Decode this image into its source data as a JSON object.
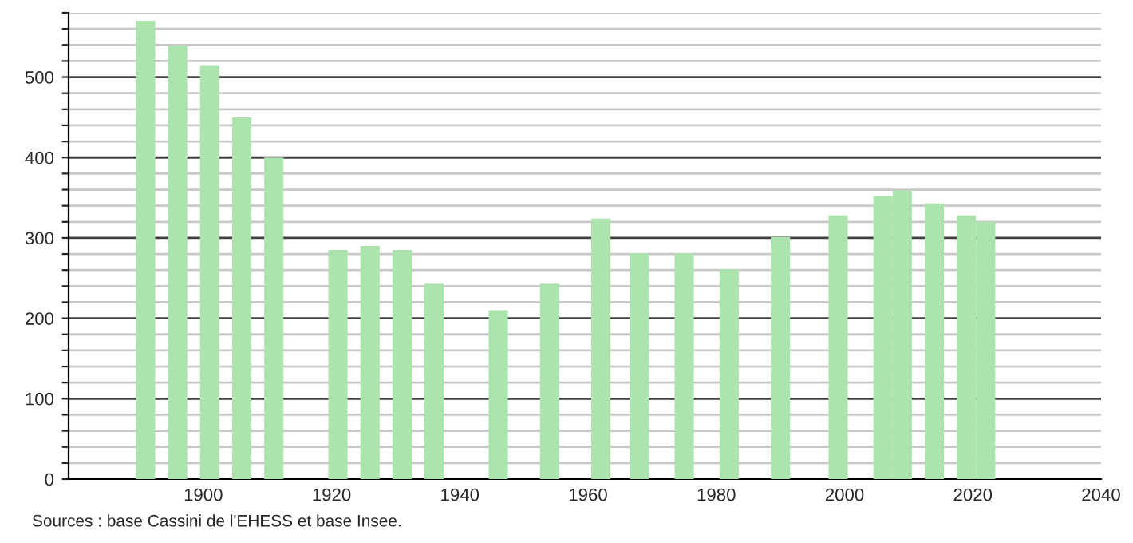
{
  "chart_data": {
    "type": "bar",
    "x": [
      1891,
      1896,
      1901,
      1906,
      1911,
      1921,
      1926,
      1931,
      1936,
      1946,
      1954,
      1962,
      1968,
      1975,
      1982,
      1990,
      1999,
      2006,
      2009,
      2014,
      2019,
      2022
    ],
    "values": [
      570,
      539,
      514,
      450,
      400,
      285,
      290,
      285,
      243,
      210,
      243,
      324,
      281,
      281,
      261,
      301,
      328,
      352,
      359,
      343,
      328,
      320
    ],
    "color": "#ade3ad",
    "xlim": [
      1879,
      2040
    ],
    "xticks": [
      1900,
      1920,
      1940,
      1960,
      1980,
      2000,
      2020,
      2040
    ],
    "ylim": [
      0,
      580
    ],
    "yticks": [
      0,
      {
        "value": 20,
        "label": null
      },
      {
        "value": 40,
        "label": null
      },
      {
        "value": 60,
        "label": null
      },
      {
        "value": 80,
        "label": null
      },
      100,
      {
        "value": 120,
        "label": null
      },
      {
        "value": 140,
        "label": null
      },
      {
        "value": 160,
        "label": null
      },
      {
        "value": 180,
        "label": null
      },
      200,
      {
        "value": 220,
        "label": null
      },
      {
        "value": 240,
        "label": null
      },
      {
        "value": 260,
        "label": null
      },
      {
        "value": 280,
        "label": null
      },
      300,
      {
        "value": 320,
        "label": null
      },
      {
        "value": 340,
        "label": null
      },
      {
        "value": 360,
        "label": null
      },
      {
        "value": 380,
        "label": null
      },
      400,
      {
        "value": 420,
        "label": null
      },
      {
        "value": 440,
        "label": null
      },
      {
        "value": 460,
        "label": null
      },
      {
        "value": 480,
        "label": null
      },
      500,
      {
        "value": 520,
        "label": null
      },
      {
        "value": 540,
        "label": null
      },
      {
        "value": 560,
        "label": null
      },
      {
        "value": 580,
        "label": null
      }
    ],
    "grid": "y",
    "annotations": [
      "Sources : base Cassini de l'EHESS et base Insee."
    ]
  }
}
